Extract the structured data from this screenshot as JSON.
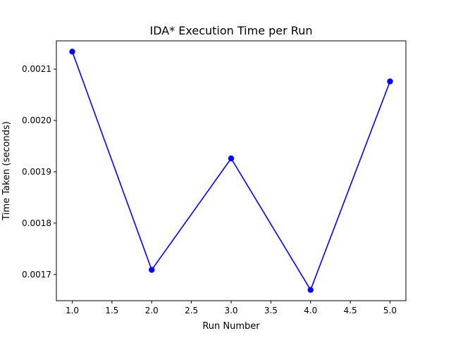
{
  "chart_data": {
    "type": "line",
    "title": "IDA* Execution Time per Run",
    "xlabel": "Run Number",
    "ylabel": "Time Taken (seconds)",
    "x": [
      1,
      2,
      3,
      4,
      5
    ],
    "series": [
      {
        "values": [
          0.002134,
          0.001709,
          0.001926,
          0.00167,
          0.002076
        ],
        "color": "#0000ff",
        "marker": "circle"
      }
    ],
    "xlim": [
      0.8,
      5.2
    ],
    "ylim": [
      0.001649,
      0.002155
    ],
    "xticks": [
      1.0,
      1.5,
      2.0,
      2.5,
      3.0,
      3.5,
      4.0,
      4.5,
      5.0
    ],
    "xtick_labels": [
      "1.0",
      "1.5",
      "2.0",
      "2.5",
      "3.0",
      "3.5",
      "4.0",
      "4.5",
      "5.0"
    ],
    "yticks": [
      0.0017,
      0.0018,
      0.0019,
      0.002,
      0.0021
    ],
    "ytick_labels": [
      "0.0017",
      "0.0018",
      "0.0019",
      "0.0020",
      "0.0021"
    ],
    "grid": false,
    "legend": "none"
  }
}
